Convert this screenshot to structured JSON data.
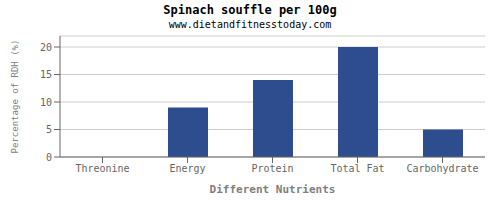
{
  "chart_data": {
    "type": "bar",
    "title": "Spinach souffle per 100g",
    "subtitle": "www.dietandfitnesstoday.com",
    "xlabel": "Different Nutrients",
    "ylabel": "Percentage of RDH (%)",
    "categories": [
      "Threonine",
      "Energy",
      "Protein",
      "Total Fat",
      "Carbohydrate"
    ],
    "values": [
      0,
      9,
      14,
      20,
      5
    ],
    "color": "#2e4d8e",
    "ylim": [
      0,
      22
    ],
    "yticks": [
      0,
      5,
      10,
      15,
      20
    ],
    "grid": true
  }
}
